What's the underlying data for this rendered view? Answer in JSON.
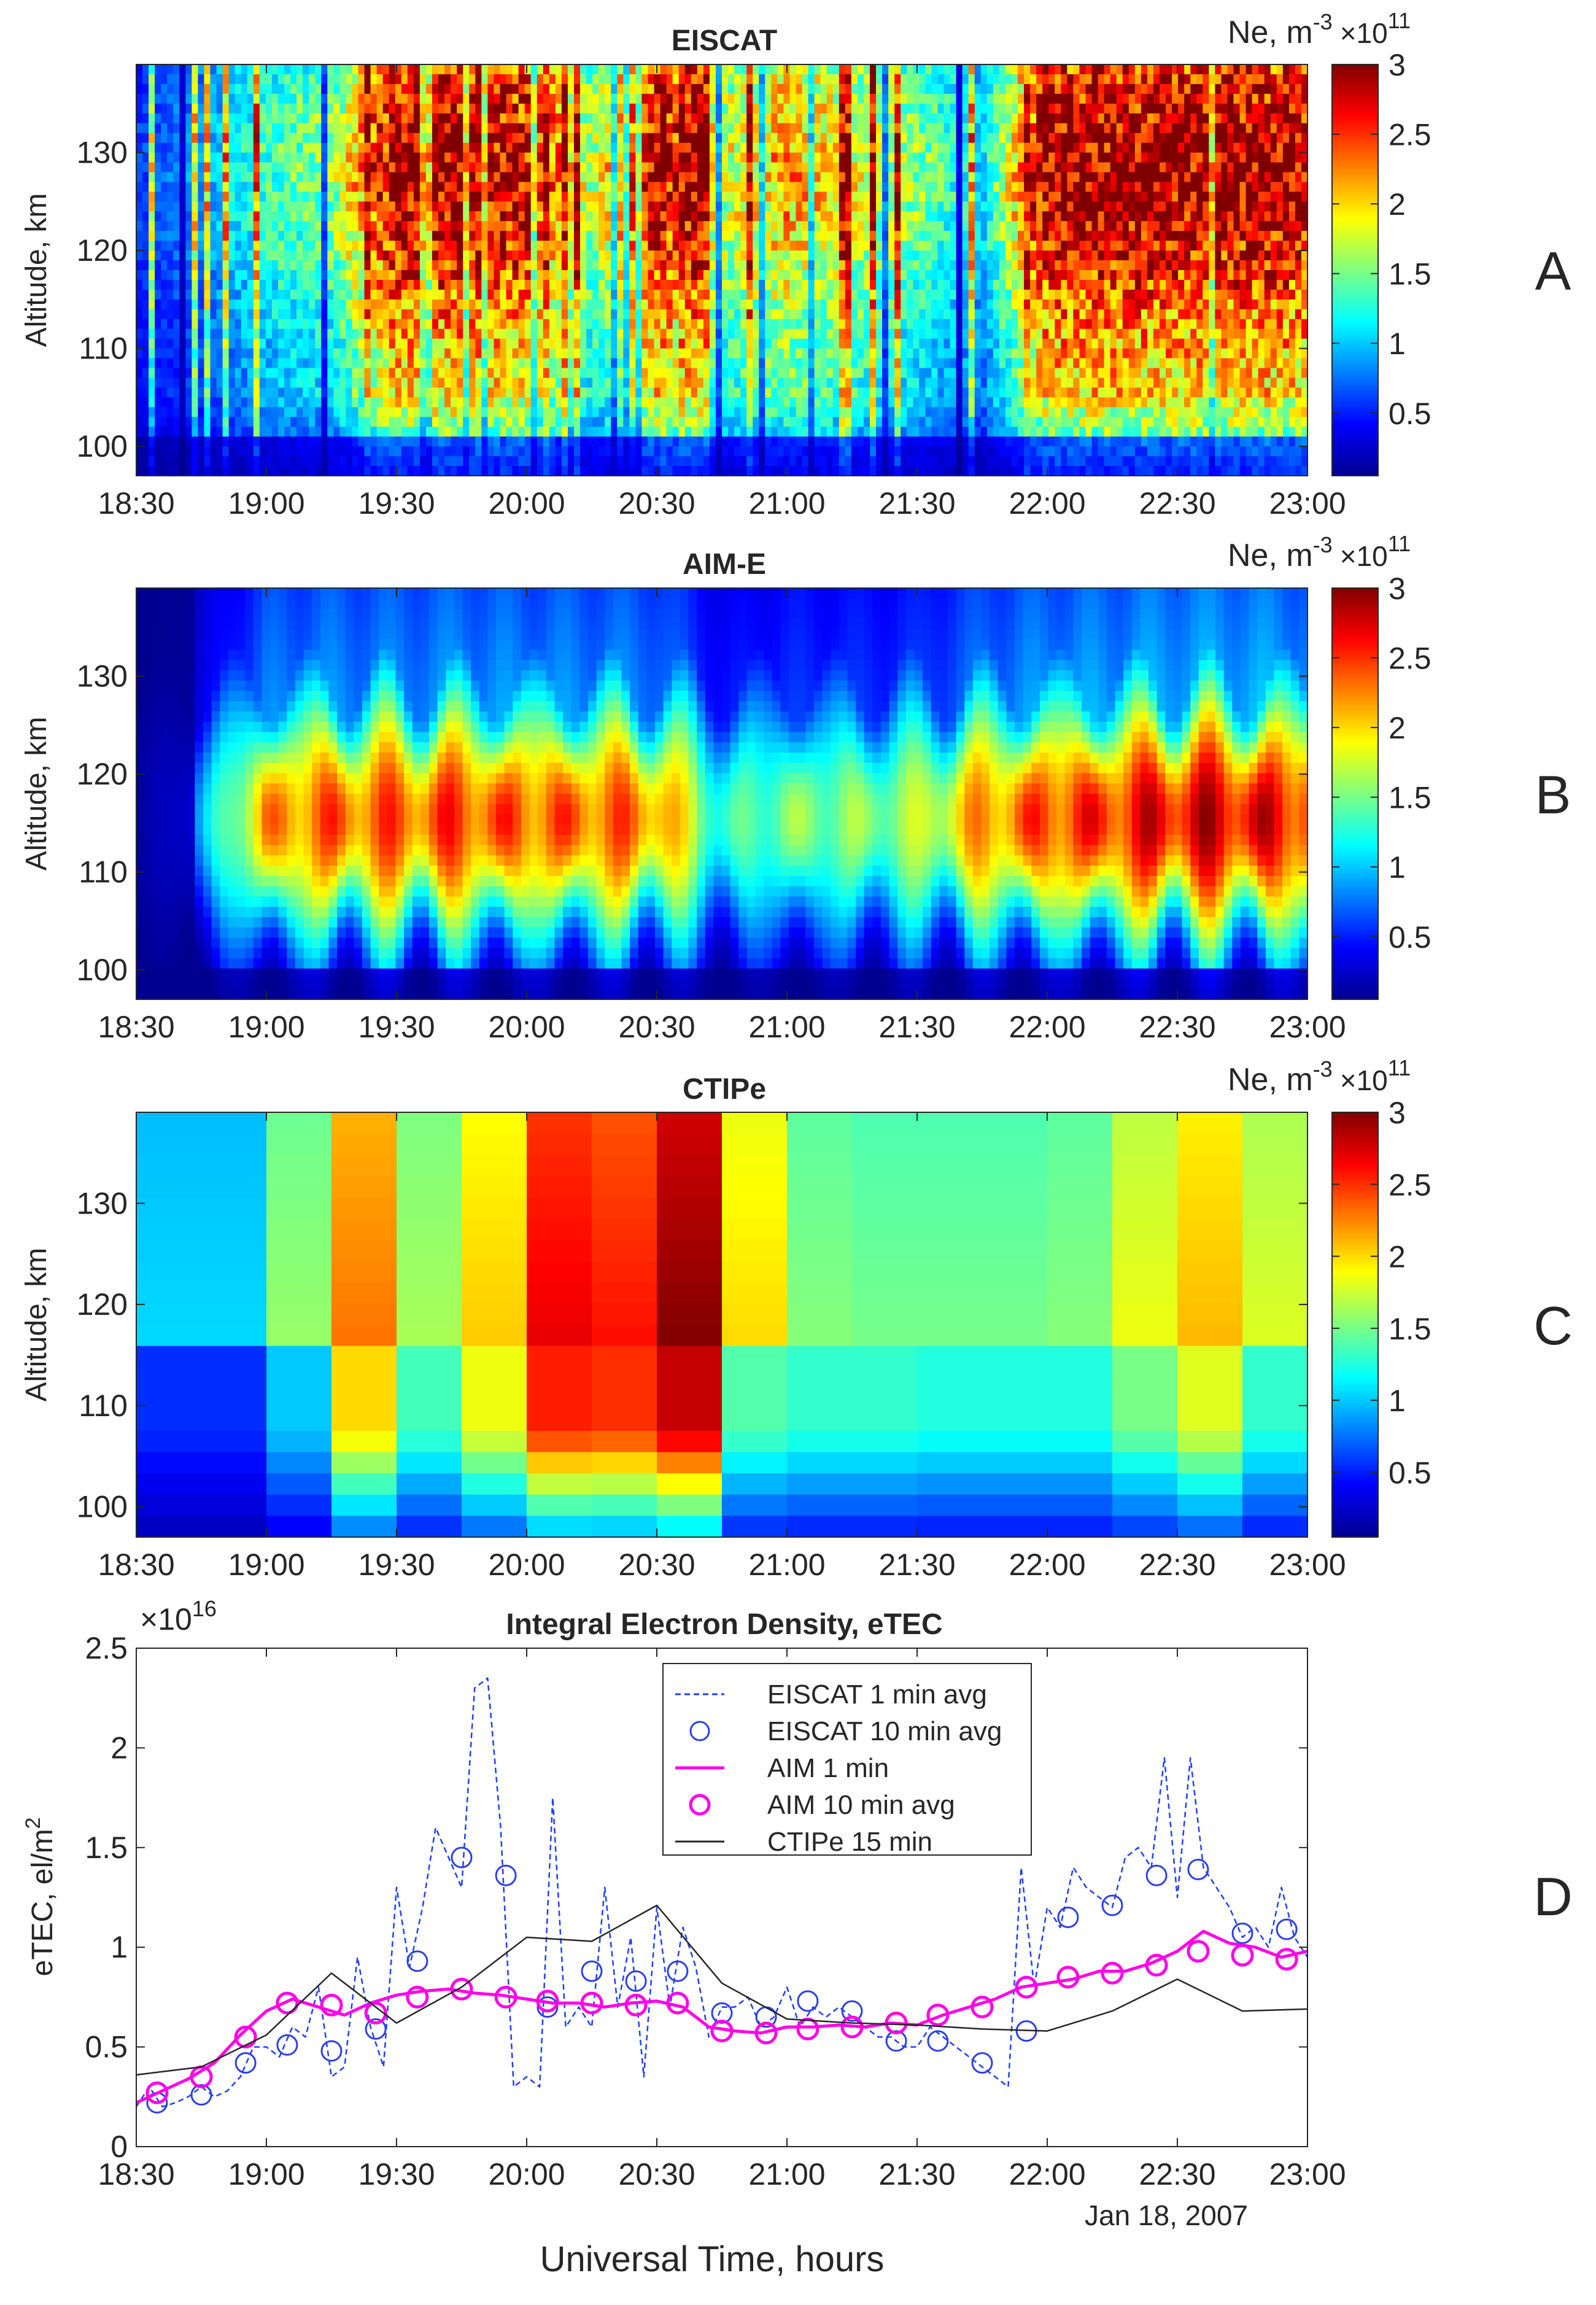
{
  "figure": {
    "time_ticks": [
      "18:30",
      "19:00",
      "19:30",
      "20:00",
      "20:30",
      "21:00",
      "21:30",
      "22:00",
      "22:30",
      "23:00"
    ],
    "xlabel": "Universal Time, hours",
    "date_label": "Jan 18, 2007",
    "colorbar": {
      "label_base": "Ne, m",
      "label_exp": "-3",
      "scale_base": "×10",
      "scale_exp": "11",
      "ticks": [
        "0.5",
        "1",
        "1.5",
        "2",
        "2.5",
        "3"
      ],
      "range": [
        0.05,
        3
      ]
    }
  },
  "chart_data": [
    {
      "type": "heatmap",
      "panel_letter": "A",
      "title": "EISCAT",
      "ylabel": "Altitude, km",
      "yticks": [
        "100",
        "110",
        "120",
        "130"
      ],
      "ylim": [
        97,
        139
      ],
      "xlim_hours": [
        18.5,
        23.0
      ],
      "zlabel": "Ne, m^-3 ×10^11",
      "zlim": [
        0.05,
        3
      ],
      "description_values": {
        "time_hours": [
          18.5,
          18.75,
          19.0,
          19.25,
          19.5,
          19.75,
          20.0,
          20.25,
          20.5,
          20.75,
          21.0,
          21.25,
          21.5,
          21.75,
          22.0,
          22.25,
          22.5,
          22.75,
          23.0
        ],
        "column_peak_ne": [
          0.6,
          0.9,
          1.4,
          1.6,
          3.0,
          3.0,
          2.8,
          1.7,
          3.0,
          1.8,
          2.2,
          1.9,
          1.6,
          1.1,
          3.0,
          3.0,
          3.0,
          3.0,
          3.0
        ]
      }
    },
    {
      "type": "heatmap",
      "panel_letter": "B",
      "title": "AIM-E",
      "ylabel": "Altitude, km",
      "yticks": [
        "100",
        "110",
        "120",
        "130"
      ],
      "ylim": [
        97,
        139
      ],
      "xlim_hours": [
        18.5,
        23.0
      ],
      "zlabel": "Ne, m^-3 ×10^11",
      "zlim": [
        0.05,
        3
      ],
      "description_values": {
        "time_hours": [
          18.5,
          18.75,
          19.0,
          19.25,
          19.5,
          19.75,
          20.0,
          20.25,
          20.5,
          20.75,
          21.0,
          21.25,
          21.5,
          21.75,
          22.0,
          22.25,
          22.5,
          22.75,
          23.0
        ],
        "column_peak_ne": [
          0.3,
          1.0,
          2.4,
          2.6,
          2.6,
          2.7,
          2.6,
          2.6,
          2.5,
          1.4,
          1.7,
          1.7,
          1.8,
          2.4,
          2.7,
          2.8,
          3.0,
          3.0,
          2.8
        ]
      }
    },
    {
      "type": "heatmap",
      "panel_letter": "C",
      "title": "CTIPe",
      "ylabel": "Altitude, km",
      "yticks": [
        "100",
        "110",
        "120",
        "130"
      ],
      "ylim": [
        97,
        139
      ],
      "xlim_hours": [
        18.5,
        23.0
      ],
      "zlabel": "Ne, m^-3 ×10^11",
      "zlim": [
        0.05,
        3
      ],
      "time_step_min": 15,
      "blocks": [
        {
          "t": 18.5,
          "upper": 1.05,
          "lower": 0.55
        },
        {
          "t": 18.75,
          "upper": 1.05,
          "lower": 0.55
        },
        {
          "t": 19.0,
          "upper": 1.6,
          "lower": 1.0
        },
        {
          "t": 19.25,
          "upper": 2.3,
          "lower": 2.0
        },
        {
          "t": 19.5,
          "upper": 1.65,
          "lower": 1.35
        },
        {
          "t": 19.75,
          "upper": 2.05,
          "lower": 1.85
        },
        {
          "t": 20.0,
          "upper": 2.7,
          "lower": 2.55
        },
        {
          "t": 20.25,
          "upper": 2.6,
          "lower": 2.5
        },
        {
          "t": 20.5,
          "upper": 3.0,
          "lower": 2.8
        },
        {
          "t": 20.75,
          "upper": 2.0,
          "lower": 1.4
        },
        {
          "t": 21.0,
          "upper": 1.55,
          "lower": 1.3
        },
        {
          "t": 21.25,
          "upper": 1.5,
          "lower": 1.3
        },
        {
          "t": 21.5,
          "upper": 1.5,
          "lower": 1.25
        },
        {
          "t": 21.75,
          "upper": 1.5,
          "lower": 1.25
        },
        {
          "t": 22.0,
          "upper": 1.55,
          "lower": 1.25
        },
        {
          "t": 22.25,
          "upper": 1.85,
          "lower": 1.5
        },
        {
          "t": 22.5,
          "upper": 2.1,
          "lower": 1.8
        },
        {
          "t": 22.75,
          "upper": 1.8,
          "lower": 1.3
        }
      ]
    },
    {
      "type": "line",
      "panel_letter": "D",
      "title": "Integral Electron Density, eTEC",
      "ylabel": "eTEC, el/m^2",
      "ylabel_base": "eTEC, el/m",
      "ylabel_exp": "2",
      "y_multiplier_base": "×10",
      "y_multiplier_exp": "16",
      "ylim": [
        0,
        2.5
      ],
      "yticks": [
        "0",
        "0.5",
        "1",
        "1.5",
        "2",
        "2.5"
      ],
      "xlim_hours": [
        18.5,
        23.0
      ],
      "legend_location": "top-center",
      "legend": [
        "EISCAT 1 min avg",
        "EISCAT 10 min avg",
        "AIM 1 min",
        "AIM 10 min avg",
        "CTIPe 15 min"
      ],
      "series": [
        {
          "name": "EISCAT 1 min avg",
          "style": "dashed",
          "color": "#1f3fff",
          "x": [
            18.5,
            18.55,
            18.6,
            18.65,
            18.7,
            18.75,
            18.8,
            18.85,
            18.9,
            18.95,
            19.0,
            19.05,
            19.1,
            19.15,
            19.2,
            19.25,
            19.3,
            19.35,
            19.4,
            19.45,
            19.5,
            19.55,
            19.6,
            19.65,
            19.7,
            19.75,
            19.8,
            19.85,
            19.9,
            19.95,
            20.0,
            20.05,
            20.1,
            20.15,
            20.2,
            20.25,
            20.3,
            20.35,
            20.4,
            20.45,
            20.5,
            20.55,
            20.6,
            20.65,
            20.7,
            20.75,
            20.8,
            20.85,
            20.9,
            20.95,
            21.0,
            21.05,
            21.1,
            21.15,
            21.2,
            21.25,
            21.3,
            21.35,
            21.4,
            21.45,
            21.5,
            21.55,
            21.6,
            21.65,
            21.7,
            21.75,
            21.8,
            21.85,
            21.9,
            21.95,
            22.0,
            22.05,
            22.1,
            22.15,
            22.2,
            22.25,
            22.3,
            22.35,
            22.4,
            22.45,
            22.5,
            22.55,
            22.6,
            22.65,
            22.7,
            22.75,
            22.8,
            22.85,
            22.9,
            22.95,
            23.0
          ],
          "y": [
            0.2,
            0.3,
            0.2,
            0.22,
            0.25,
            0.3,
            0.25,
            0.28,
            0.35,
            0.5,
            0.5,
            0.45,
            0.6,
            0.55,
            0.8,
            0.35,
            0.4,
            0.95,
            0.6,
            0.4,
            1.3,
            0.9,
            1.2,
            1.6,
            1.45,
            1.3,
            2.3,
            2.35,
            1.6,
            0.3,
            0.35,
            0.3,
            1.75,
            0.6,
            0.7,
            0.6,
            1.3,
            0.7,
            1.05,
            0.35,
            1.2,
            0.7,
            1.1,
            0.9,
            0.55,
            0.7,
            0.7,
            0.75,
            0.6,
            0.65,
            0.8,
            0.6,
            0.7,
            0.65,
            0.7,
            0.65,
            0.6,
            0.55,
            0.55,
            0.5,
            0.5,
            0.6,
            0.55,
            0.5,
            0.45,
            0.4,
            0.35,
            0.3,
            1.4,
            0.8,
            1.2,
            1.1,
            1.4,
            1.3,
            1.25,
            1.2,
            1.45,
            1.5,
            1.4,
            1.95,
            1.25,
            1.95,
            1.4,
            1.3,
            1.2,
            1.05,
            1.1,
            1.0,
            1.3,
            1.05,
            0.95
          ]
        },
        {
          "name": "EISCAT 10 min avg",
          "style": "circles",
          "color": "#2b3fe8",
          "x": [
            18.58,
            18.75,
            18.92,
            19.08,
            19.25,
            19.42,
            19.58,
            19.75,
            19.92,
            20.08,
            20.25,
            20.42,
            20.58,
            20.75,
            20.92,
            21.08,
            21.25,
            21.42,
            21.58,
            21.75,
            21.92,
            22.08,
            22.25,
            22.42,
            22.58,
            22.75,
            22.92
          ],
          "y": [
            0.22,
            0.26,
            0.42,
            0.51,
            0.48,
            0.59,
            0.93,
            1.45,
            1.36,
            0.7,
            0.88,
            0.83,
            0.88,
            0.67,
            0.65,
            0.73,
            0.68,
            0.53,
            0.53,
            0.42,
            0.58,
            1.15,
            1.21,
            1.36,
            1.39,
            1.07,
            1.09
          ]
        },
        {
          "name": "AIM 1 min",
          "style": "solid",
          "color": "#ff00e8",
          "x": [
            18.5,
            18.6,
            18.7,
            18.8,
            18.9,
            19.0,
            19.1,
            19.2,
            19.3,
            19.4,
            19.5,
            19.6,
            19.7,
            19.8,
            19.9,
            20.0,
            20.1,
            20.2,
            20.3,
            20.4,
            20.5,
            20.6,
            20.7,
            20.8,
            20.9,
            21.0,
            21.1,
            21.2,
            21.3,
            21.4,
            21.5,
            21.6,
            21.7,
            21.8,
            21.9,
            22.0,
            22.1,
            22.2,
            22.3,
            22.4,
            22.5,
            22.6,
            22.7,
            22.8,
            22.9,
            23.0
          ],
          "y": [
            0.22,
            0.28,
            0.34,
            0.42,
            0.56,
            0.68,
            0.74,
            0.7,
            0.66,
            0.72,
            0.76,
            0.78,
            0.79,
            0.77,
            0.76,
            0.74,
            0.72,
            0.72,
            0.7,
            0.72,
            0.73,
            0.7,
            0.6,
            0.58,
            0.57,
            0.6,
            0.6,
            0.61,
            0.6,
            0.62,
            0.61,
            0.66,
            0.7,
            0.74,
            0.8,
            0.82,
            0.84,
            0.88,
            0.88,
            0.92,
            0.98,
            1.08,
            1.02,
            1.0,
            0.95,
            0.98
          ]
        },
        {
          "name": "AIM 10 min avg",
          "style": "circles",
          "color": "#ff00e8",
          "x": [
            18.58,
            18.75,
            18.92,
            19.08,
            19.25,
            19.42,
            19.58,
            19.75,
            19.92,
            20.08,
            20.25,
            20.42,
            20.58,
            20.75,
            20.92,
            21.08,
            21.25,
            21.42,
            21.58,
            21.75,
            21.92,
            22.08,
            22.25,
            22.42,
            22.58,
            22.75,
            22.92
          ],
          "y": [
            0.27,
            0.35,
            0.55,
            0.72,
            0.71,
            0.67,
            0.75,
            0.79,
            0.75,
            0.73,
            0.72,
            0.71,
            0.72,
            0.58,
            0.57,
            0.59,
            0.6,
            0.62,
            0.66,
            0.7,
            0.8,
            0.85,
            0.87,
            0.91,
            0.98,
            0.96,
            0.94
          ]
        },
        {
          "name": "CTIPe 15 min",
          "style": "solid",
          "color": "#262626",
          "x": [
            18.5,
            18.75,
            19.0,
            19.25,
            19.5,
            19.75,
            20.0,
            20.25,
            20.5,
            20.75,
            21.0,
            21.25,
            21.5,
            21.75,
            22.0,
            22.25,
            22.5,
            22.75,
            23.0
          ],
          "y": [
            0.36,
            0.4,
            0.56,
            0.87,
            0.62,
            0.8,
            1.05,
            1.03,
            1.21,
            0.82,
            0.64,
            0.62,
            0.61,
            0.59,
            0.58,
            0.68,
            0.84,
            0.68,
            0.69
          ]
        }
      ]
    }
  ]
}
